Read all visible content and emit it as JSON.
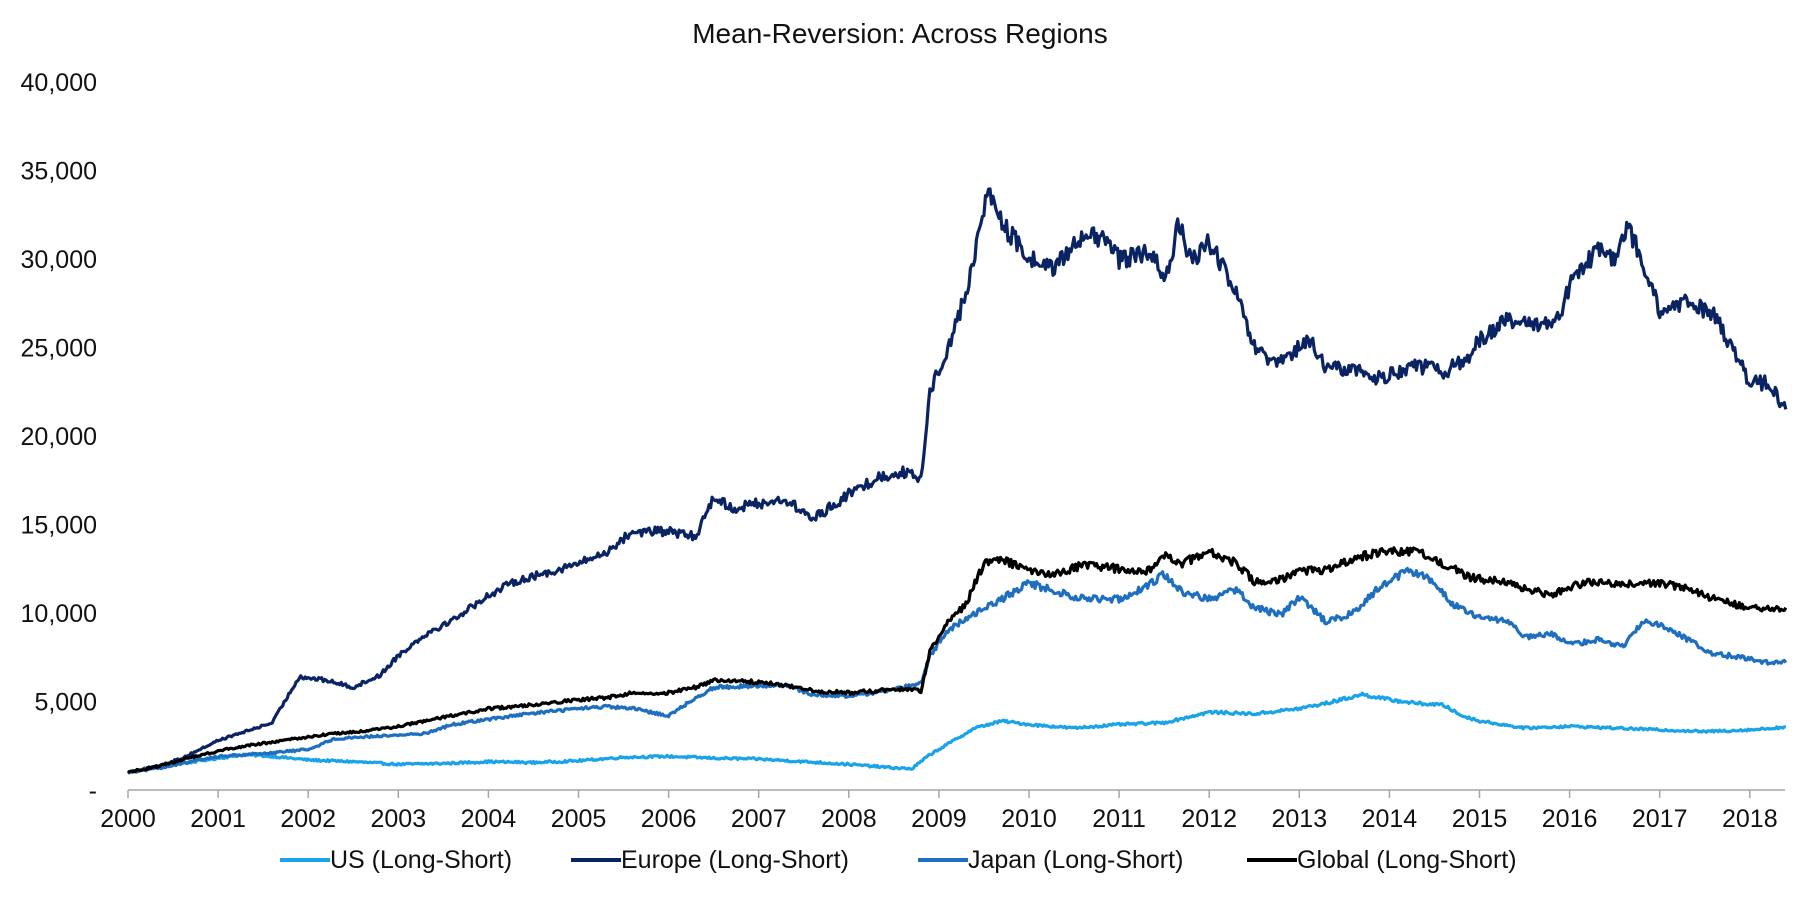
{
  "chart_data": {
    "type": "line",
    "title": "Mean-Reversion:  Across Regions",
    "xlabel": "",
    "ylabel": "",
    "x_ticks": [
      "2000",
      "2001",
      "2002",
      "2003",
      "2004",
      "2005",
      "2006",
      "2007",
      "2008",
      "2009",
      "2010",
      "2011",
      "2012",
      "2013",
      "2014",
      "2015",
      "2016",
      "2017",
      "2018"
    ],
    "y_ticks": [
      {
        "value": 0,
        "label": "-"
      },
      {
        "value": 5000,
        "label": "5,000"
      },
      {
        "value": 10000,
        "label": "10,000"
      },
      {
        "value": 15000,
        "label": "15,000"
      },
      {
        "value": 20000,
        "label": "20,000"
      },
      {
        "value": 25000,
        "label": "25,000"
      },
      {
        "value": 30000,
        "label": "30,000"
      },
      {
        "value": 35000,
        "label": "35,000"
      },
      {
        "value": 40000,
        "label": "40,000"
      }
    ],
    "xlim": [
      2000,
      2018.4
    ],
    "ylim": [
      0,
      40000
    ],
    "grid": false,
    "legend_position": "bottom",
    "series": [
      {
        "name": "US (Long-Short)",
        "color": "#1aa3e8",
        "points": [
          [
            2000,
            1000
          ],
          [
            2000.3,
            1300
          ],
          [
            2000.6,
            1500
          ],
          [
            2001,
            1800
          ],
          [
            2001.3,
            2000
          ],
          [
            2001.6,
            1900
          ],
          [
            2002,
            1700
          ],
          [
            2002.5,
            1600
          ],
          [
            2003,
            1450
          ],
          [
            2003.5,
            1500
          ],
          [
            2004,
            1600
          ],
          [
            2004.5,
            1550
          ],
          [
            2005,
            1650
          ],
          [
            2005.5,
            1850
          ],
          [
            2006,
            1900
          ],
          [
            2006.5,
            1800
          ],
          [
            2007,
            1750
          ],
          [
            2007.5,
            1600
          ],
          [
            2008,
            1450
          ],
          [
            2008.5,
            1250
          ],
          [
            2008.7,
            1200
          ],
          [
            2008.9,
            2000
          ],
          [
            2009.1,
            2600
          ],
          [
            2009.4,
            3500
          ],
          [
            2009.7,
            3900
          ],
          [
            2010,
            3700
          ],
          [
            2010.5,
            3500
          ],
          [
            2011,
            3700
          ],
          [
            2011.5,
            3800
          ],
          [
            2012,
            4400
          ],
          [
            2012.5,
            4300
          ],
          [
            2013,
            4600
          ],
          [
            2013.3,
            4900
          ],
          [
            2013.7,
            5400
          ],
          [
            2014,
            5100
          ],
          [
            2014.3,
            4900
          ],
          [
            2014.6,
            4800
          ],
          [
            2014.8,
            4200
          ],
          [
            2015,
            3900
          ],
          [
            2015.5,
            3500
          ],
          [
            2016,
            3600
          ],
          [
            2016.5,
            3500
          ],
          [
            2017,
            3400
          ],
          [
            2017.5,
            3300
          ],
          [
            2018,
            3400
          ],
          [
            2018.4,
            3550
          ]
        ]
      },
      {
        "name": "Europe (Long-Short)",
        "color": "#0a2463",
        "points": [
          [
            2000,
            1000
          ],
          [
            2000.3,
            1300
          ],
          [
            2000.6,
            1800
          ],
          [
            2001,
            2800
          ],
          [
            2001.3,
            3300
          ],
          [
            2001.6,
            3800
          ],
          [
            2001.9,
            6400
          ],
          [
            2002.2,
            6200
          ],
          [
            2002.5,
            5800
          ],
          [
            2002.8,
            6500
          ],
          [
            2003,
            7600
          ],
          [
            2003.3,
            8800
          ],
          [
            2003.6,
            9600
          ],
          [
            2004,
            11000
          ],
          [
            2004.3,
            11800
          ],
          [
            2004.6,
            12200
          ],
          [
            2005,
            12800
          ],
          [
            2005.3,
            13400
          ],
          [
            2005.6,
            14600
          ],
          [
            2006,
            14600
          ],
          [
            2006.3,
            14300
          ],
          [
            2006.5,
            16600
          ],
          [
            2006.7,
            15900
          ],
          [
            2007,
            16200
          ],
          [
            2007.3,
            16400
          ],
          [
            2007.6,
            15300
          ],
          [
            2008,
            16700
          ],
          [
            2008.3,
            17600
          ],
          [
            2008.6,
            18000
          ],
          [
            2008.8,
            17500
          ],
          [
            2008.9,
            22500
          ],
          [
            2009.1,
            25000
          ],
          [
            2009.3,
            28000
          ],
          [
            2009.45,
            31500
          ],
          [
            2009.55,
            34000
          ],
          [
            2009.7,
            32000
          ],
          [
            2010,
            30000
          ],
          [
            2010.3,
            29500
          ],
          [
            2010.6,
            31500
          ],
          [
            2010.9,
            30800
          ],
          [
            2011,
            30000
          ],
          [
            2011.3,
            30300
          ],
          [
            2011.55,
            29000
          ],
          [
            2011.65,
            32200
          ],
          [
            2011.8,
            29800
          ],
          [
            2012,
            31000
          ],
          [
            2012.3,
            28000
          ],
          [
            2012.5,
            25000
          ],
          [
            2012.7,
            24000
          ],
          [
            2012.9,
            24500
          ],
          [
            2013.1,
            25500
          ],
          [
            2013.3,
            23800
          ],
          [
            2013.6,
            23800
          ],
          [
            2013.9,
            23200
          ],
          [
            2014,
            23500
          ],
          [
            2014.3,
            24000
          ],
          [
            2014.6,
            23600
          ],
          [
            2014.9,
            24500
          ],
          [
            2015,
            25500
          ],
          [
            2015.3,
            26500
          ],
          [
            2015.6,
            26200
          ],
          [
            2015.9,
            26800
          ],
          [
            2016,
            28500
          ],
          [
            2016.3,
            30500
          ],
          [
            2016.5,
            30000
          ],
          [
            2016.65,
            31800
          ],
          [
            2016.8,
            30000
          ],
          [
            2017,
            27000
          ],
          [
            2017.3,
            27500
          ],
          [
            2017.6,
            27000
          ],
          [
            2017.8,
            25000
          ],
          [
            2018,
            23000
          ],
          [
            2018.2,
            23000
          ],
          [
            2018.4,
            21500
          ]
        ]
      },
      {
        "name": "Japan (Long-Short)",
        "color": "#1f6fc0",
        "points": [
          [
            2000,
            1000
          ],
          [
            2000.3,
            1200
          ],
          [
            2000.6,
            1500
          ],
          [
            2001,
            1900
          ],
          [
            2001.3,
            2000
          ],
          [
            2001.6,
            2100
          ],
          [
            2002,
            2300
          ],
          [
            2002.3,
            2900
          ],
          [
            2002.6,
            3000
          ],
          [
            2003,
            3100
          ],
          [
            2003.3,
            3200
          ],
          [
            2003.6,
            3700
          ],
          [
            2004,
            4000
          ],
          [
            2004.3,
            4200
          ],
          [
            2004.6,
            4400
          ],
          [
            2005,
            4600
          ],
          [
            2005.3,
            4700
          ],
          [
            2005.6,
            4600
          ],
          [
            2006,
            4200
          ],
          [
            2006.3,
            5200
          ],
          [
            2006.5,
            5800
          ],
          [
            2007,
            5900
          ],
          [
            2007.3,
            5900
          ],
          [
            2007.6,
            5400
          ],
          [
            2008,
            5300
          ],
          [
            2008.3,
            5500
          ],
          [
            2008.6,
            5800
          ],
          [
            2008.8,
            6000
          ],
          [
            2008.9,
            7600
          ],
          [
            2009.1,
            9000
          ],
          [
            2009.4,
            10000
          ],
          [
            2009.7,
            10800
          ],
          [
            2010,
            11700
          ],
          [
            2010.3,
            11200
          ],
          [
            2010.6,
            10800
          ],
          [
            2011,
            10800
          ],
          [
            2011.3,
            11500
          ],
          [
            2011.5,
            12200
          ],
          [
            2011.7,
            11200
          ],
          [
            2012,
            10800
          ],
          [
            2012.3,
            11300
          ],
          [
            2012.5,
            10300
          ],
          [
            2012.8,
            9900
          ],
          [
            2013,
            10900
          ],
          [
            2013.3,
            9500
          ],
          [
            2013.6,
            10000
          ],
          [
            2013.9,
            11500
          ],
          [
            2014.2,
            12400
          ],
          [
            2014.5,
            11800
          ],
          [
            2014.7,
            10500
          ],
          [
            2015,
            9700
          ],
          [
            2015.3,
            9600
          ],
          [
            2015.5,
            8600
          ],
          [
            2015.8,
            8800
          ],
          [
            2016,
            8200
          ],
          [
            2016.3,
            8500
          ],
          [
            2016.6,
            8100
          ],
          [
            2016.8,
            9500
          ],
          [
            2017,
            9400
          ],
          [
            2017.3,
            8500
          ],
          [
            2017.6,
            7700
          ],
          [
            2017.9,
            7500
          ],
          [
            2018.2,
            7200
          ],
          [
            2018.4,
            7200
          ]
        ]
      },
      {
        "name": "Global (Long-Short)",
        "color": "#000000",
        "points": [
          [
            2000,
            1000
          ],
          [
            2000.3,
            1300
          ],
          [
            2000.6,
            1700
          ],
          [
            2001,
            2200
          ],
          [
            2001.3,
            2500
          ],
          [
            2001.6,
            2700
          ],
          [
            2002,
            3000
          ],
          [
            2002.3,
            3200
          ],
          [
            2002.6,
            3300
          ],
          [
            2003,
            3600
          ],
          [
            2003.3,
            3900
          ],
          [
            2003.6,
            4200
          ],
          [
            2004,
            4600
          ],
          [
            2004.3,
            4700
          ],
          [
            2004.6,
            4900
          ],
          [
            2005,
            5100
          ],
          [
            2005.3,
            5200
          ],
          [
            2005.6,
            5500
          ],
          [
            2006,
            5500
          ],
          [
            2006.3,
            5800
          ],
          [
            2006.5,
            6200
          ],
          [
            2007,
            6100
          ],
          [
            2007.3,
            5900
          ],
          [
            2007.6,
            5600
          ],
          [
            2008,
            5500
          ],
          [
            2008.3,
            5600
          ],
          [
            2008.6,
            5700
          ],
          [
            2008.8,
            5600
          ],
          [
            2008.9,
            7800
          ],
          [
            2009.1,
            9500
          ],
          [
            2009.3,
            10500
          ],
          [
            2009.5,
            12800
          ],
          [
            2009.7,
            13000
          ],
          [
            2010,
            12400
          ],
          [
            2010.3,
            12200
          ],
          [
            2010.6,
            12700
          ],
          [
            2011,
            12500
          ],
          [
            2011.3,
            12300
          ],
          [
            2011.5,
            13300
          ],
          [
            2011.7,
            12800
          ],
          [
            2012,
            13500
          ],
          [
            2012.3,
            12800
          ],
          [
            2012.5,
            11800
          ],
          [
            2012.8,
            11900
          ],
          [
            2013,
            12400
          ],
          [
            2013.3,
            12400
          ],
          [
            2013.6,
            13100
          ],
          [
            2014,
            13500
          ],
          [
            2014.3,
            13500
          ],
          [
            2014.6,
            12800
          ],
          [
            2014.9,
            12000
          ],
          [
            2015.2,
            11800
          ],
          [
            2015.5,
            11400
          ],
          [
            2015.8,
            11000
          ],
          [
            2016,
            11500
          ],
          [
            2016.3,
            11800
          ],
          [
            2016.6,
            11600
          ],
          [
            2017,
            11700
          ],
          [
            2017.3,
            11400
          ],
          [
            2017.6,
            10800
          ],
          [
            2017.9,
            10400
          ],
          [
            2018.2,
            10200
          ],
          [
            2018.4,
            10300
          ]
        ]
      }
    ]
  }
}
